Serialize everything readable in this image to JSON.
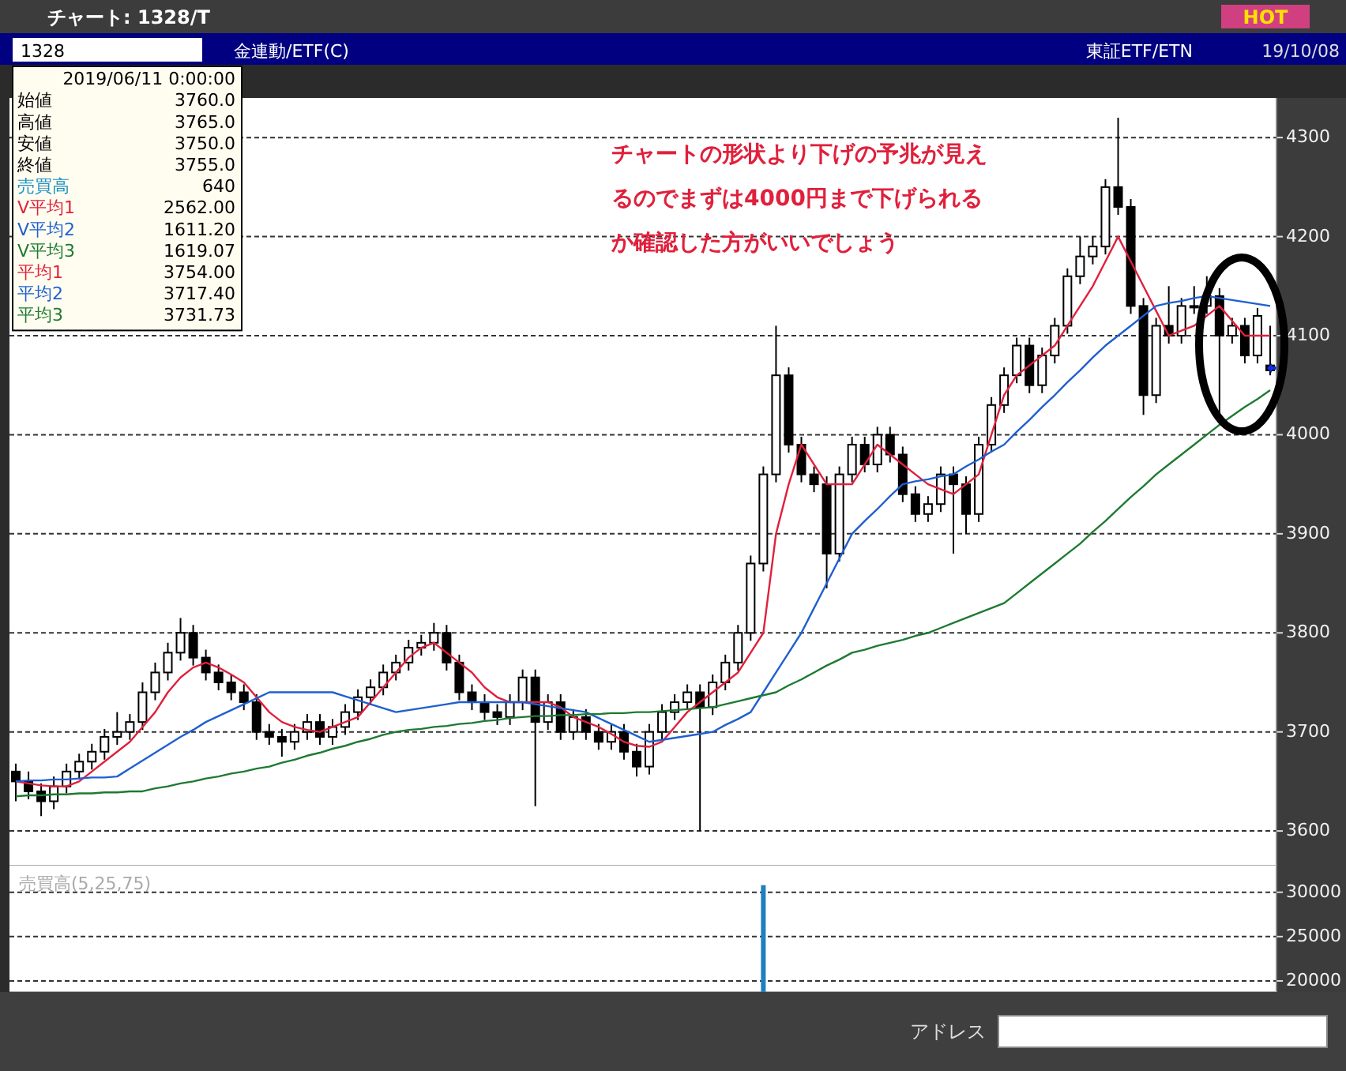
{
  "chart_data": [
    {
      "type": "candlestick",
      "title": "チャート: 1328/T",
      "categories": [
        null,
        null,
        null,
        null,
        null,
        null,
        null,
        null,
        null,
        null,
        null,
        null,
        null,
        null,
        null,
        null,
        null,
        null,
        null,
        null,
        null,
        null,
        null,
        null,
        null,
        null,
        null,
        null,
        null,
        null,
        null,
        null,
        null,
        null,
        null,
        null,
        null,
        null,
        null,
        null,
        null,
        null,
        null,
        null,
        null,
        null,
        null,
        null,
        null,
        null,
        null,
        null,
        null,
        null,
        null,
        null,
        null,
        null,
        null,
        null,
        null,
        null,
        null,
        null,
        null,
        null,
        null,
        null,
        null,
        null,
        null,
        null,
        null,
        null,
        null,
        null,
        null,
        null,
        null,
        null,
        null,
        null,
        null,
        null,
        null,
        null,
        null,
        null,
        null,
        null,
        null,
        null,
        null,
        null,
        null,
        null,
        null,
        null,
        null,
        null
      ],
      "ohlc": [
        [
          3660,
          3668,
          3630,
          3650
        ],
        [
          3650,
          3660,
          3632,
          3640
        ],
        [
          3640,
          3648,
          3615,
          3630
        ],
        [
          3630,
          3655,
          3622,
          3645
        ],
        [
          3645,
          3668,
          3638,
          3660
        ],
        [
          3660,
          3678,
          3652,
          3670
        ],
        [
          3670,
          3688,
          3662,
          3680
        ],
        [
          3680,
          3703,
          3672,
          3695
        ],
        [
          3695,
          3720,
          3687,
          3700
        ],
        [
          3700,
          3718,
          3692,
          3710
        ],
        [
          3710,
          3750,
          3702,
          3740
        ],
        [
          3740,
          3770,
          3732,
          3760
        ],
        [
          3760,
          3790,
          3752,
          3780
        ],
        [
          3780,
          3815,
          3772,
          3800
        ],
        [
          3800,
          3808,
          3767,
          3775
        ],
        [
          3775,
          3783,
          3752,
          3760
        ],
        [
          3760,
          3768,
          3742,
          3750
        ],
        [
          3750,
          3758,
          3732,
          3740
        ],
        [
          3740,
          3748,
          3722,
          3730
        ],
        [
          3730,
          3738,
          3692,
          3700
        ],
        [
          3700,
          3708,
          3687,
          3695
        ],
        [
          3695,
          3703,
          3675,
          3690
        ],
        [
          3690,
          3708,
          3682,
          3700
        ],
        [
          3700,
          3718,
          3692,
          3710
        ],
        [
          3710,
          3718,
          3687,
          3695
        ],
        [
          3695,
          3713,
          3687,
          3705
        ],
        [
          3705,
          3728,
          3697,
          3720
        ],
        [
          3720,
          3743,
          3712,
          3735
        ],
        [
          3735,
          3753,
          3727,
          3745
        ],
        [
          3745,
          3768,
          3737,
          3760
        ],
        [
          3760,
          3778,
          3752,
          3770
        ],
        [
          3770,
          3793,
          3762,
          3785
        ],
        [
          3785,
          3798,
          3777,
          3790
        ],
        [
          3790,
          3810,
          3782,
          3800
        ],
        [
          3800,
          3808,
          3762,
          3770
        ],
        [
          3770,
          3778,
          3732,
          3740
        ],
        [
          3740,
          3748,
          3722,
          3730
        ],
        [
          3730,
          3738,
          3712,
          3720
        ],
        [
          3720,
          3728,
          3707,
          3715
        ],
        [
          3715,
          3738,
          3707,
          3730
        ],
        [
          3730,
          3763,
          3722,
          3755
        ],
        [
          3755,
          3763,
          3625,
          3710
        ],
        [
          3710,
          3738,
          3702,
          3730
        ],
        [
          3730,
          3738,
          3692,
          3700
        ],
        [
          3700,
          3723,
          3692,
          3715
        ],
        [
          3715,
          3723,
          3692,
          3700
        ],
        [
          3700,
          3708,
          3682,
          3690
        ],
        [
          3690,
          3708,
          3682,
          3700
        ],
        [
          3700,
          3708,
          3672,
          3680
        ],
        [
          3680,
          3688,
          3655,
          3665
        ],
        [
          3665,
          3708,
          3657,
          3700
        ],
        [
          3700,
          3728,
          3692,
          3720
        ],
        [
          3720,
          3738,
          3712,
          3730
        ],
        [
          3730,
          3748,
          3722,
          3740
        ],
        [
          3740,
          3748,
          3600,
          3725
        ],
        [
          3725,
          3758,
          3717,
          3750
        ],
        [
          3750,
          3778,
          3742,
          3770
        ],
        [
          3770,
          3808,
          3762,
          3800
        ],
        [
          3800,
          3878,
          3792,
          3870
        ],
        [
          3870,
          3968,
          3862,
          3960
        ],
        [
          3960,
          4110,
          3952,
          4060
        ],
        [
          4060,
          4068,
          3982,
          3990
        ],
        [
          3990,
          3998,
          3952,
          3960
        ],
        [
          3960,
          3968,
          3942,
          3950
        ],
        [
          3950,
          3958,
          3845,
          3880
        ],
        [
          3880,
          3968,
          3872,
          3960
        ],
        [
          3960,
          3998,
          3952,
          3990
        ],
        [
          3990,
          3998,
          3962,
          3970
        ],
        [
          3970,
          4008,
          3962,
          4000
        ],
        [
          4000,
          4008,
          3972,
          3980
        ],
        [
          3980,
          3988,
          3932,
          3940
        ],
        [
          3940,
          3948,
          3912,
          3920
        ],
        [
          3920,
          3938,
          3912,
          3930
        ],
        [
          3930,
          3968,
          3922,
          3960
        ],
        [
          3960,
          3968,
          3880,
          3950
        ],
        [
          3950,
          3958,
          3900,
          3920
        ],
        [
          3920,
          3998,
          3912,
          3990
        ],
        [
          3990,
          4038,
          3982,
          4030
        ],
        [
          4030,
          4068,
          4022,
          4060
        ],
        [
          4060,
          4098,
          4052,
          4090
        ],
        [
          4090,
          4098,
          4042,
          4050
        ],
        [
          4050,
          4088,
          4042,
          4080
        ],
        [
          4080,
          4118,
          4072,
          4110
        ],
        [
          4110,
          4168,
          4102,
          4160
        ],
        [
          4160,
          4200,
          4152,
          4180
        ],
        [
          4180,
          4200,
          4172,
          4190
        ],
        [
          4190,
          4258,
          4182,
          4250
        ],
        [
          4250,
          4320,
          4222,
          4230
        ],
        [
          4230,
          4238,
          4122,
          4130
        ],
        [
          4130,
          4138,
          4020,
          4040
        ],
        [
          4040,
          4118,
          4032,
          4110
        ],
        [
          4110,
          4150,
          4092,
          4100
        ],
        [
          4100,
          4138,
          4092,
          4130
        ],
        [
          4130,
          4150,
          4122,
          4130
        ],
        [
          4130,
          4160,
          4122,
          4140
        ],
        [
          4140,
          4148,
          4020,
          4100
        ],
        [
          4100,
          4118,
          4092,
          4110
        ],
        [
          4110,
          4118,
          4072,
          4080
        ],
        [
          4080,
          4128,
          4072,
          4120
        ],
        [
          4070,
          4110,
          4060,
          4065
        ]
      ],
      "series": [
        {
          "type": "line",
          "name": "平均1",
          "color": "#e0203c",
          "values": [
            3650,
            3648,
            3646,
            3645,
            3645,
            3650,
            3660,
            3670,
            3680,
            3690,
            3705,
            3720,
            3740,
            3755,
            3765,
            3770,
            3765,
            3758,
            3750,
            3735,
            3720,
            3710,
            3705,
            3702,
            3700,
            3705,
            3710,
            3715,
            3730,
            3745,
            3760,
            3775,
            3785,
            3790,
            3780,
            3770,
            3760,
            3745,
            3735,
            3730,
            3730,
            3730,
            3730,
            3725,
            3715,
            3710,
            3705,
            3698,
            3690,
            3686,
            3685,
            3690,
            3705,
            3720,
            3730,
            3740,
            3750,
            3760,
            3780,
            3800,
            3900,
            3950,
            3990,
            3970,
            3950,
            3950,
            3950,
            3970,
            3990,
            3980,
            3970,
            3960,
            3950,
            3945,
            3940,
            3950,
            3960,
            4000,
            4040,
            4060,
            4070,
            4080,
            4090,
            4110,
            4130,
            4150,
            4175,
            4200,
            4175,
            4150,
            4125,
            4100,
            4105,
            4110,
            4120,
            4130,
            4115,
            4100,
            4100,
            4100
          ]
        },
        {
          "type": "line",
          "name": "平均2",
          "color": "#1f5fd0",
          "values": [
            3650,
            3651,
            3651,
            3652,
            3652,
            3653,
            3654,
            3654,
            3655,
            3663,
            3671,
            3679,
            3687,
            3695,
            3702,
            3710,
            3716,
            3722,
            3728,
            3734,
            3740,
            3740,
            3740,
            3740,
            3740,
            3740,
            3736,
            3732,
            3728,
            3724,
            3720,
            3722,
            3724,
            3726,
            3728,
            3730,
            3730,
            3730,
            3730,
            3730,
            3730,
            3728,
            3726,
            3724,
            3722,
            3720,
            3714,
            3708,
            3702,
            3696,
            3690,
            3692,
            3694,
            3696,
            3698,
            3700,
            3707,
            3713,
            3720,
            3740,
            3760,
            3780,
            3800,
            3825,
            3850,
            3875,
            3900,
            3913,
            3925,
            3938,
            3950,
            3953,
            3955,
            3958,
            3960,
            3968,
            3975,
            3983,
            3990,
            4003,
            4015,
            4028,
            4040,
            4053,
            4065,
            4078,
            4090,
            4100,
            4110,
            4120,
            4130,
            4133,
            4135,
            4138,
            4140,
            4138,
            4136,
            4134,
            4132,
            4130
          ]
        },
        {
          "type": "line",
          "name": "平均3",
          "color": "#1e7a32",
          "values": [
            3635,
            3636,
            3636,
            3637,
            3637,
            3638,
            3638,
            3639,
            3639,
            3640,
            3640,
            3643,
            3645,
            3648,
            3650,
            3653,
            3655,
            3658,
            3660,
            3663,
            3665,
            3669,
            3672,
            3676,
            3679,
            3683,
            3686,
            3690,
            3693,
            3697,
            3700,
            3702,
            3703,
            3705,
            3706,
            3708,
            3709,
            3711,
            3712,
            3714,
            3715,
            3716,
            3716,
            3717,
            3717,
            3718,
            3718,
            3719,
            3719,
            3720,
            3720,
            3721,
            3722,
            3723,
            3724,
            3725,
            3728,
            3731,
            3734,
            3737,
            3740,
            3747,
            3753,
            3760,
            3767,
            3773,
            3780,
            3783,
            3787,
            3790,
            3793,
            3797,
            3800,
            3805,
            3810,
            3815,
            3820,
            3825,
            3830,
            3840,
            3850,
            3860,
            3870,
            3880,
            3890,
            3902,
            3913,
            3925,
            3937,
            3948,
            3960,
            3970,
            3980,
            3990,
            4000,
            4010,
            4019,
            4028,
            4036,
            4045
          ]
        }
      ],
      "ylim": [
        3565,
        4340
      ],
      "yticks": [
        3600,
        3700,
        3800,
        3900,
        4000,
        4100,
        4200,
        4300
      ],
      "grid": "y",
      "legend": "top left",
      "annotations": [
        "1328",
        "金連動/ETF(C)",
        "東証ETF/ETN",
        "19/10/08",
        "HOT",
        "2019/06/11 0:00:00",
        "始値",
        "3760.0",
        "高値",
        "3765.0",
        "安値",
        "3750.0",
        "終値",
        "3755.0",
        "売買高",
        "640",
        "V平均1",
        "2562.00",
        "V平均2",
        "1611.20",
        "V平均3",
        "1619.07",
        "3754.00",
        "3717.40",
        "3731.73",
        "チャートの形状より下げの予兆が見え",
        "るのでまずは4000円まで下げられる",
        "か確認した方がいいでしょう",
        "アドレス"
      ]
    },
    {
      "type": "bar",
      "title": "売買高(5,25,75)",
      "categories": [
        null,
        null,
        null,
        null,
        null,
        null,
        null,
        null,
        null,
        null,
        null,
        null,
        null,
        null,
        null,
        null,
        null,
        null,
        null,
        null,
        null,
        null,
        null,
        null,
        null,
        null,
        null,
        null,
        null,
        null,
        null,
        null,
        null,
        null,
        null,
        null,
        null,
        null,
        null,
        null,
        null,
        null,
        null,
        null,
        null,
        null,
        null,
        null,
        null,
        null,
        null,
        null,
        null,
        null,
        null,
        null,
        null,
        null,
        null,
        null,
        null,
        null,
        null,
        null,
        null,
        null,
        null,
        null,
        null,
        null,
        null,
        null,
        null,
        null,
        null,
        null,
        null,
        null,
        null,
        null,
        null,
        null,
        null,
        null,
        null,
        null,
        null,
        null,
        null,
        null,
        null,
        null,
        null,
        null,
        null,
        null,
        null,
        null,
        null,
        null
      ],
      "values": [
        null,
        null,
        null,
        null,
        null,
        null,
        null,
        null,
        null,
        null,
        null,
        null,
        null,
        null,
        null,
        null,
        null,
        null,
        null,
        null,
        null,
        null,
        null,
        null,
        null,
        null,
        null,
        null,
        null,
        null,
        null,
        null,
        null,
        null,
        null,
        null,
        null,
        null,
        null,
        null,
        null,
        null,
        null,
        null,
        null,
        null,
        null,
        null,
        null,
        null,
        null,
        null,
        null,
        null,
        null,
        null,
        null,
        null,
        null,
        30800,
        null,
        null,
        null,
        null,
        null,
        null,
        null,
        null,
        null,
        null,
        null,
        null,
        null,
        null,
        null,
        null,
        null,
        null,
        null,
        null,
        null,
        null,
        null,
        null,
        null,
        null,
        null,
        null,
        null,
        null,
        null,
        null,
        null,
        null,
        null,
        null,
        null,
        null,
        null,
        null
      ],
      "color": "#1f7fc0",
      "ylim": [
        18750,
        33000
      ],
      "yticks": [
        20000,
        25000,
        30000
      ],
      "grid": "y"
    }
  ]
}
